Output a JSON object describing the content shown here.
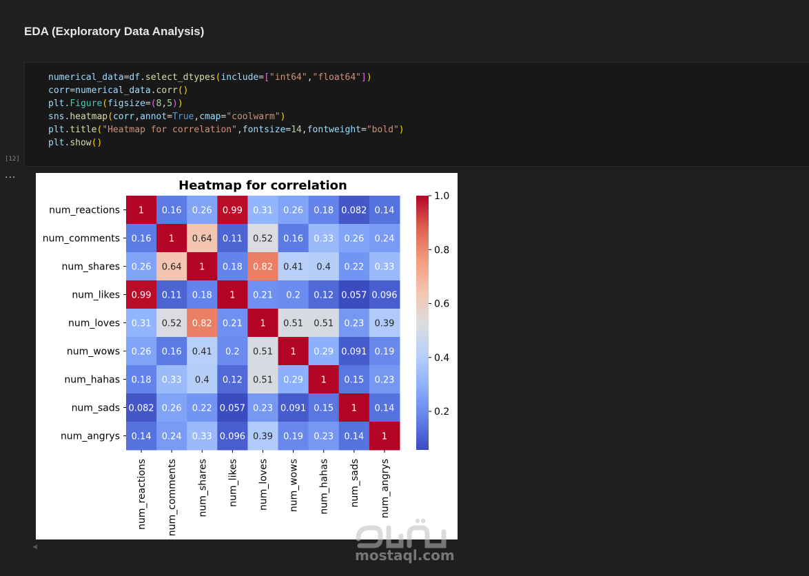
{
  "markdown": {
    "heading": "EDA (Exploratory Data Analysis)"
  },
  "code_cell": {
    "execution_count": "[12]",
    "output_marker": "...",
    "lines": [
      [
        [
          "numerical_data",
          "t-var"
        ],
        [
          "=",
          "t-op"
        ],
        [
          "df",
          "t-var"
        ],
        [
          ".",
          "t-op"
        ],
        [
          "select_dtypes",
          "t-fn"
        ],
        [
          "(",
          "t-br1"
        ],
        [
          "include",
          "t-var"
        ],
        [
          "=",
          "t-op"
        ],
        [
          "[",
          "t-br2"
        ],
        [
          "\"int64\"",
          "t-str"
        ],
        [
          ",",
          "t-op"
        ],
        [
          "\"float64\"",
          "t-str"
        ],
        [
          "]",
          "t-br2"
        ],
        [
          ")",
          "t-br1"
        ]
      ],
      [
        [
          "corr",
          "t-var"
        ],
        [
          "=",
          "t-op"
        ],
        [
          "numerical_data",
          "t-var"
        ],
        [
          ".",
          "t-op"
        ],
        [
          "corr",
          "t-fn"
        ],
        [
          "()",
          "t-br1"
        ]
      ],
      [
        [
          "plt",
          "t-var"
        ],
        [
          ".",
          "t-op"
        ],
        [
          "Figure",
          "t-cls"
        ],
        [
          "(",
          "t-br1"
        ],
        [
          "figsize",
          "t-var"
        ],
        [
          "=",
          "t-op"
        ],
        [
          "(",
          "t-br2"
        ],
        [
          "8",
          "t-num"
        ],
        [
          ",",
          "t-op"
        ],
        [
          "5",
          "t-num"
        ],
        [
          ")",
          "t-br2"
        ],
        [
          ")",
          "t-br1"
        ]
      ],
      [
        [
          "sns",
          "t-var"
        ],
        [
          ".",
          "t-op"
        ],
        [
          "heatmap",
          "t-fn"
        ],
        [
          "(",
          "t-br1"
        ],
        [
          "corr",
          "t-var"
        ],
        [
          ",",
          "t-op"
        ],
        [
          "annot",
          "t-var"
        ],
        [
          "=",
          "t-op"
        ],
        [
          "True",
          "t-kw"
        ],
        [
          ",",
          "t-op"
        ],
        [
          "cmap",
          "t-var"
        ],
        [
          "=",
          "t-op"
        ],
        [
          "\"coolwarm\"",
          "t-str"
        ],
        [
          ")",
          "t-br1"
        ]
      ],
      [
        [
          "plt",
          "t-var"
        ],
        [
          ".",
          "t-op"
        ],
        [
          "title",
          "t-fn"
        ],
        [
          "(",
          "t-br1"
        ],
        [
          "\"Heatmap for correlation\"",
          "t-str"
        ],
        [
          ",",
          "t-op"
        ],
        [
          "fontsize",
          "t-var"
        ],
        [
          "=",
          "t-op"
        ],
        [
          "14",
          "t-num"
        ],
        [
          ",",
          "t-op"
        ],
        [
          "fontweight",
          "t-var"
        ],
        [
          "=",
          "t-op"
        ],
        [
          "\"bold\"",
          "t-str"
        ],
        [
          ")",
          "t-br1"
        ]
      ],
      [
        [
          "plt",
          "t-var"
        ],
        [
          ".",
          "t-op"
        ],
        [
          "show",
          "t-fn"
        ],
        [
          "()",
          "t-br1"
        ]
      ]
    ]
  },
  "chart_data": {
    "type": "heatmap",
    "title": "Heatmap for correlation",
    "colormap": "coolwarm",
    "x_labels": [
      "num_reactions",
      "num_comments",
      "num_shares",
      "num_likes",
      "num_loves",
      "num_wows",
      "num_hahas",
      "num_sads",
      "num_angrys"
    ],
    "y_labels": [
      "num_reactions",
      "num_comments",
      "num_shares",
      "num_likes",
      "num_loves",
      "num_wows",
      "num_hahas",
      "num_sads",
      "num_angrys"
    ],
    "values": [
      [
        1,
        0.16,
        0.26,
        0.99,
        0.31,
        0.26,
        0.18,
        0.082,
        0.14
      ],
      [
        0.16,
        1,
        0.64,
        0.11,
        0.52,
        0.16,
        0.33,
        0.26,
        0.24
      ],
      [
        0.26,
        0.64,
        1,
        0.18,
        0.82,
        0.41,
        0.4,
        0.22,
        0.33
      ],
      [
        0.99,
        0.11,
        0.18,
        1,
        0.21,
        0.2,
        0.12,
        0.057,
        0.096
      ],
      [
        0.31,
        0.52,
        0.82,
        0.21,
        1,
        0.51,
        0.51,
        0.23,
        0.39
      ],
      [
        0.26,
        0.16,
        0.41,
        0.2,
        0.51,
        1,
        0.29,
        0.091,
        0.19
      ],
      [
        0.18,
        0.33,
        0.4,
        0.12,
        0.51,
        0.29,
        1,
        0.15,
        0.23
      ],
      [
        0.082,
        0.26,
        0.22,
        0.057,
        0.23,
        0.091,
        0.15,
        1,
        0.14
      ],
      [
        0.14,
        0.24,
        0.33,
        0.096,
        0.39,
        0.19,
        0.23,
        0.14,
        1
      ]
    ],
    "colorbar": {
      "range": [
        0.057,
        1.0
      ],
      "ticks": [
        1.0,
        0.8,
        0.6,
        0.4,
        0.2
      ],
      "tick_labels": [
        "1.0",
        "0.8",
        "0.6",
        "0.4",
        "0.2"
      ]
    }
  },
  "watermark": {
    "text": "mostaql.com",
    "logo_text": "مستقل"
  }
}
